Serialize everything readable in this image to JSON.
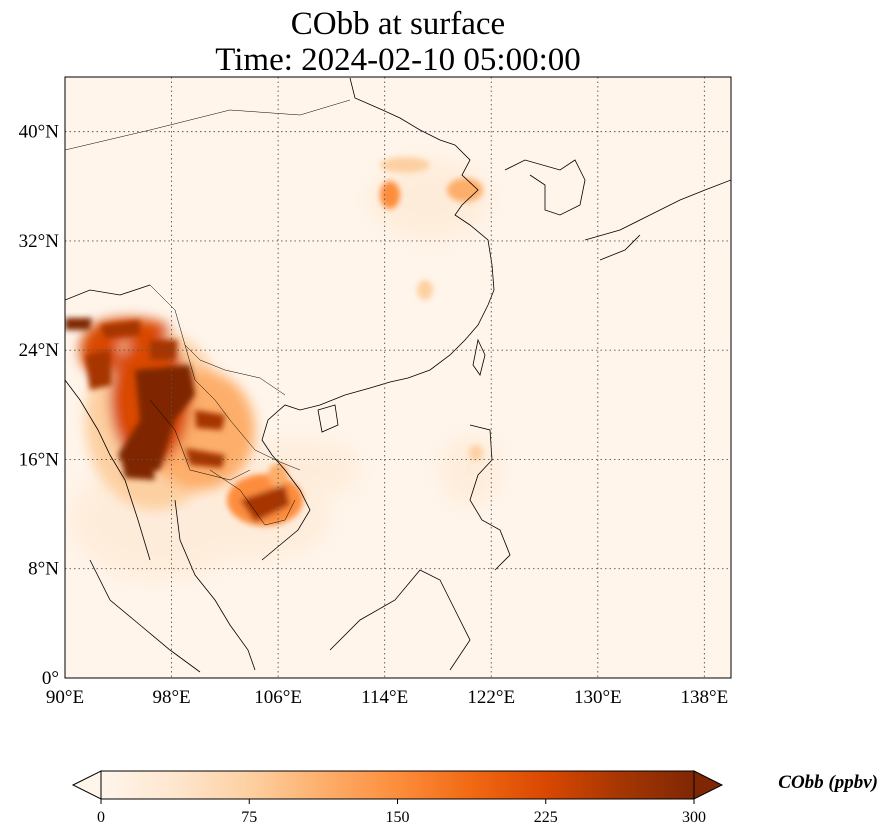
{
  "title": {
    "line1": "CObb at surface",
    "line2": "Time: 2024-02-10 05:00:00"
  },
  "map": {
    "lon_range": [
      90,
      140
    ],
    "lat_range": [
      0,
      44
    ],
    "lon_ticks": [
      90,
      98,
      106,
      114,
      122,
      130,
      138
    ],
    "lat_ticks": [
      0,
      8,
      16,
      24,
      32,
      40
    ],
    "lon_tick_labels": [
      "90°E",
      "98°E",
      "106°E",
      "114°E",
      "122°E",
      "130°E",
      "138°E"
    ],
    "lat_tick_labels": [
      "0°",
      "8°N",
      "16°N",
      "24°N",
      "32°N",
      "40°N"
    ],
    "gridlines": true,
    "gridline_style": "dotted",
    "coastlines": true,
    "borders": true,
    "hotspots": [
      {
        "region": "Myanmar / northern Thailand",
        "level": "very high"
      },
      {
        "region": "Cambodia",
        "level": "high"
      },
      {
        "region": "North China Plain",
        "level": "moderate"
      },
      {
        "region": "Luzon",
        "level": "low"
      }
    ]
  },
  "colorbar": {
    "label": "CObb (ppbv)",
    "ticks": [
      0,
      75,
      150,
      225,
      300
    ],
    "tick_labels": [
      "0",
      "75",
      "150",
      "225",
      "300"
    ],
    "min": 0,
    "max": 300,
    "extend": "both",
    "colormap": [
      "#fff5eb",
      "#fee6ce",
      "#fdd0a2",
      "#fdae6b",
      "#fd8d3c",
      "#f16913",
      "#d94801",
      "#a63603",
      "#7f2704"
    ]
  }
}
